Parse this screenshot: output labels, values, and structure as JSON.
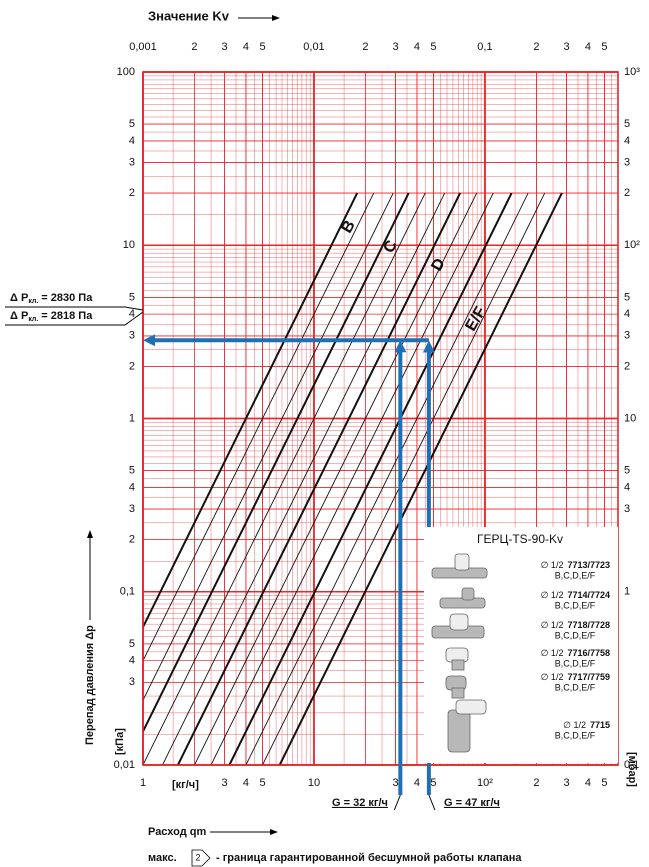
{
  "chart_data": {
    "type": "line",
    "x2_label": "Значение Kv",
    "x_label": "Расход qm",
    "y_label": "Перепад давления Δp",
    "x_unit": "[кг/ч]",
    "y_unit": "[кПа]",
    "y2_unit": "[мбар]",
    "xscale": "log",
    "yscale": "log",
    "xlim": [
      1,
      600
    ],
    "ylim": [
      0.01,
      100
    ],
    "x2lim": [
      0.001,
      0.6
    ],
    "y2lim": [
      0.1,
      1000
    ],
    "xticks": [
      1,
      3,
      4,
      5,
      10,
      {
        "value": 30,
        "label": "3"
      },
      {
        "value": 40,
        "label": "4"
      },
      {
        "value": 50,
        "label": "5"
      },
      {
        "value": 100,
        "label": "10²"
      },
      {
        "value": 200,
        "label": "2"
      },
      {
        "value": 300,
        "label": "3"
      },
      {
        "value": 400,
        "label": "4"
      },
      {
        "value": 500,
        "label": "5"
      }
    ],
    "x2ticks": [
      {
        "value": 0.001,
        "label": "0,001"
      },
      {
        "value": 0.002,
        "label": "2"
      },
      {
        "value": 0.003,
        "label": "3"
      },
      {
        "value": 0.004,
        "label": "4"
      },
      {
        "value": 0.005,
        "label": "5"
      },
      {
        "value": 0.01,
        "label": "0,01"
      },
      {
        "value": 0.02,
        "label": "2"
      },
      {
        "value": 0.03,
        "label": "3"
      },
      {
        "value": 0.04,
        "label": "4"
      },
      {
        "value": 0.05,
        "label": "5"
      },
      {
        "value": 0.1,
        "label": "0,1"
      },
      {
        "value": 0.2,
        "label": "2"
      },
      {
        "value": 0.3,
        "label": "3"
      },
      {
        "value": 0.4,
        "label": "4"
      },
      {
        "value": 0.5,
        "label": "5"
      }
    ],
    "yticks": [
      {
        "value": 0.01,
        "label": "0,01"
      },
      {
        "value": 0.03,
        "label": "3"
      },
      {
        "value": 0.04,
        "label": "4"
      },
      {
        "value": 0.05,
        "label": "5"
      },
      {
        "value": 0.1,
        "label": "0,1"
      },
      {
        "value": 0.2,
        "label": "2"
      },
      {
        "value": 0.3,
        "label": "3"
      },
      {
        "value": 0.4,
        "label": "4"
      },
      {
        "value": 0.5,
        "label": "5"
      },
      1,
      {
        "value": 2,
        "label": "2"
      },
      3,
      4,
      5,
      10,
      {
        "value": 20,
        "label": "2"
      },
      {
        "value": 30,
        "label": "3"
      },
      {
        "value": 40,
        "label": "4"
      },
      {
        "value": 50,
        "label": "5"
      },
      100
    ],
    "y2ticks": [
      {
        "value": 0.1,
        "label": "0,1"
      },
      1,
      {
        "value": 3,
        "label": "3"
      },
      {
        "value": 4,
        "label": "4"
      },
      {
        "value": 5,
        "label": "5"
      },
      10,
      {
        "value": 20,
        "label": "2"
      },
      {
        "value": 30,
        "label": "3"
      },
      {
        "value": 40,
        "label": "4"
      },
      {
        "value": 50,
        "label": "5"
      },
      {
        "value": 100,
        "label": "10²"
      },
      {
        "value": 200,
        "label": "2"
      },
      {
        "value": 300,
        "label": "3"
      },
      {
        "value": 400,
        "label": "4"
      },
      {
        "value": 500,
        "label": "5"
      },
      {
        "value": 1000,
        "label": "10³"
      }
    ],
    "grid": true,
    "grid_color": "#e8262b",
    "kv_lines": {
      "color": "#111111",
      "kv": [
        0.04,
        0.05,
        0.065,
        0.08,
        0.1,
        0.13,
        0.16,
        0.2,
        0.25,
        0.32,
        0.4,
        0.5,
        0.63
      ],
      "dp_range": [
        0.01,
        20
      ]
    },
    "curve_labels": [
      "B",
      "C",
      "D",
      "E/F"
    ],
    "series": [
      {
        "name": "G = 32 кг/ч",
        "color": "#1f6fb5",
        "x": 32,
        "y": 2.83
      },
      {
        "name": "G = 47 кг/ч",
        "color": "#1f6fb5",
        "x": 47,
        "y": 2.818
      }
    ],
    "dp_labels": [
      {
        "prefix": "Δ P",
        "sub": "кл.",
        "text": "= 2830 Па"
      },
      {
        "prefix": "Δ P",
        "sub": "кл.",
        "text": "= 2818 Па"
      }
    ],
    "legend_box": {
      "title": "ГЕРЦ-TS-90-Kv",
      "items": [
        {
          "size": "∅ 1/2",
          "code": "7713/7723",
          "presets": "B,C,D,E/F"
        },
        {
          "size": "∅ 1/2",
          "code": "7714/7724",
          "presets": "B,C,D,E/F"
        },
        {
          "size": "∅ 1/2",
          "code": "7718/7728",
          "presets": "B,C,D,E/F"
        },
        {
          "size": "∅ 1/2",
          "code": "7716/7758",
          "presets": "B,C,D,E/F"
        },
        {
          "size": "∅ 1/2",
          "code": "7717/7759",
          "presets": "B,C,D,E/F"
        },
        {
          "size": "∅ 1/2",
          "code": "7715",
          "presets": "B,C,D,E/F"
        }
      ]
    },
    "footer": {
      "prefix": "макс.",
      "symbol": "2",
      "text": "- граница гарантированной бесшумной работы клапана"
    }
  }
}
